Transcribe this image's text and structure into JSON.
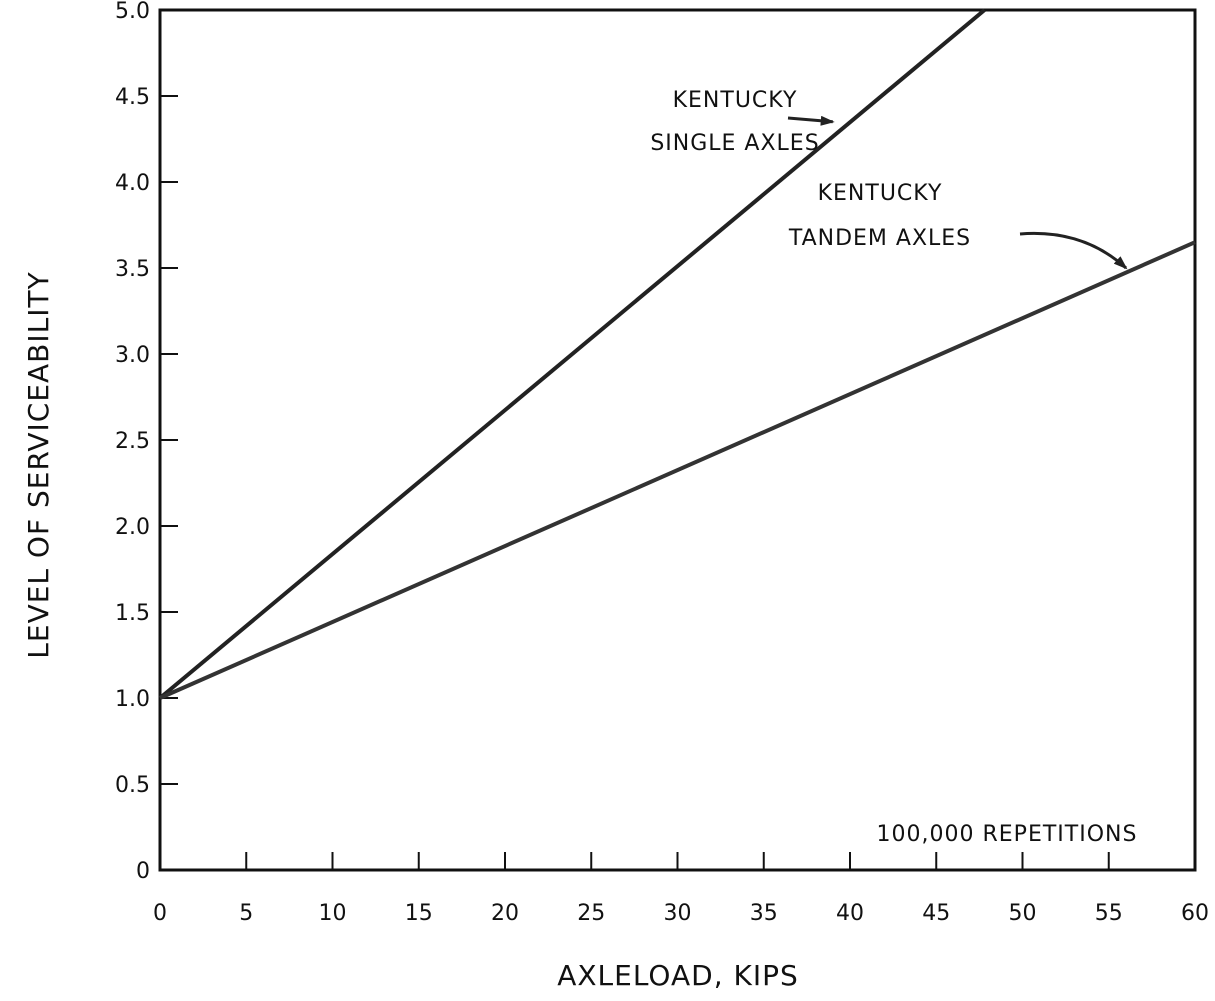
{
  "chart_data": {
    "type": "line",
    "title": "",
    "xlabel": "AXLELOAD, KIPS",
    "ylabel": "LEVEL OF SERVICEABILITY",
    "xlim": [
      0,
      60
    ],
    "ylim": [
      0,
      5.0
    ],
    "x_ticks": [
      0,
      5,
      10,
      15,
      20,
      25,
      30,
      35,
      40,
      45,
      50,
      55,
      60
    ],
    "x_tick_labels": [
      "0",
      "5",
      "10",
      "15",
      "20",
      "25",
      "30",
      "35",
      "40",
      "45",
      "50",
      "55",
      "60"
    ],
    "y_ticks": [
      0,
      0.5,
      1.0,
      1.5,
      2.0,
      2.5,
      3.0,
      3.5,
      4.0,
      4.5,
      5.0
    ],
    "y_tick_labels": [
      "0",
      "0.5",
      "1.0",
      "1.5",
      "2.0",
      "2.5",
      "3.0",
      "3.5",
      "4.0",
      "4.5",
      "5.0"
    ],
    "grid": false,
    "legend": "none",
    "series": [
      {
        "name": "KENTUCKY SINGLE AXLES",
        "x": [
          0,
          47.8
        ],
        "y": [
          1.0,
          5.0
        ],
        "color": "#222222"
      },
      {
        "name": "KENTUCKY TANDEM AXLES",
        "x": [
          0,
          60
        ],
        "y": [
          1.0,
          3.65
        ],
        "color": "#333333"
      }
    ],
    "annotations": [
      {
        "name": "single",
        "lines": [
          "KENTUCKY",
          "SINGLE  AXLES"
        ],
        "arrow_to": [
          39,
          4.35
        ]
      },
      {
        "name": "tandem",
        "lines": [
          "KENTUCKY",
          "TANDEM  AXLES"
        ],
        "arrow_to": [
          56,
          3.5
        ]
      },
      {
        "name": "repetitions",
        "lines": [
          "100,000  REPETITIONS"
        ]
      }
    ]
  }
}
